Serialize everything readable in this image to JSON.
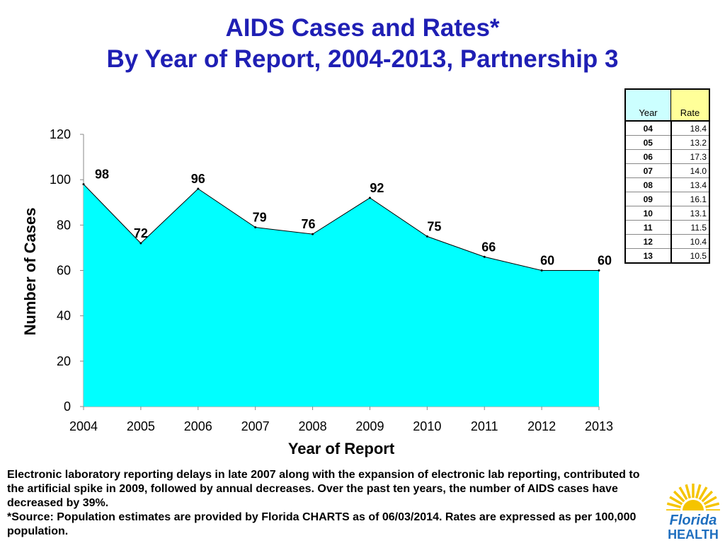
{
  "title_line1": "AIDS Cases and Rates*",
  "title_line2": "By Year of Report, 2004-2013, Partnership 3",
  "colors": {
    "title": "#1f1fb4",
    "area_fill": "#00ffff",
    "area_stroke": "#000000",
    "logo_sun": "#f5c400",
    "logo_text": "#1f6fbf"
  },
  "chart_data": {
    "type": "area",
    "x": [
      "2004",
      "2005",
      "2006",
      "2007",
      "2008",
      "2009",
      "2010",
      "2011",
      "2012",
      "2013"
    ],
    "values": [
      98,
      72,
      96,
      79,
      76,
      92,
      75,
      66,
      60,
      60
    ],
    "data_labels": [
      "98",
      "72",
      "96",
      "79",
      "76",
      "92",
      "75",
      "66",
      "60",
      "60"
    ],
    "xlabel": "Year of Report",
    "ylabel": "Number of Cases",
    "ylim": [
      0,
      120
    ],
    "yticks": [
      0,
      20,
      40,
      60,
      80,
      100,
      120
    ],
    "grid": false,
    "legend": "none"
  },
  "rate_table": {
    "headers": [
      "Year",
      "Rate"
    ],
    "rows": [
      {
        "year": "04",
        "rate": "18.4"
      },
      {
        "year": "05",
        "rate": "13.2"
      },
      {
        "year": "06",
        "rate": "17.3"
      },
      {
        "year": "07",
        "rate": "14.0"
      },
      {
        "year": "08",
        "rate": "13.4"
      },
      {
        "year": "09",
        "rate": "16.1"
      },
      {
        "year": "10",
        "rate": "13.1"
      },
      {
        "year": "11",
        "rate": "11.5"
      },
      {
        "year": "12",
        "rate": "10.4"
      },
      {
        "year": "13",
        "rate": "10.5"
      }
    ]
  },
  "footnote": {
    "line1": "Electronic laboratory reporting delays in late 2007 along with the expansion of electronic lab reporting, contributed to the artificial spike in 2009, followed by annual decreases. Over the past ten years, the number of AIDS cases have decreased by 39%.",
    "line2": "*Source: Population estimates are provided by Florida CHARTS as of 06/03/2014. Rates are expressed as per 100,000 population."
  },
  "logo": {
    "word1": "Florida",
    "word2": "HEALTH",
    "icon": "sun-icon"
  }
}
